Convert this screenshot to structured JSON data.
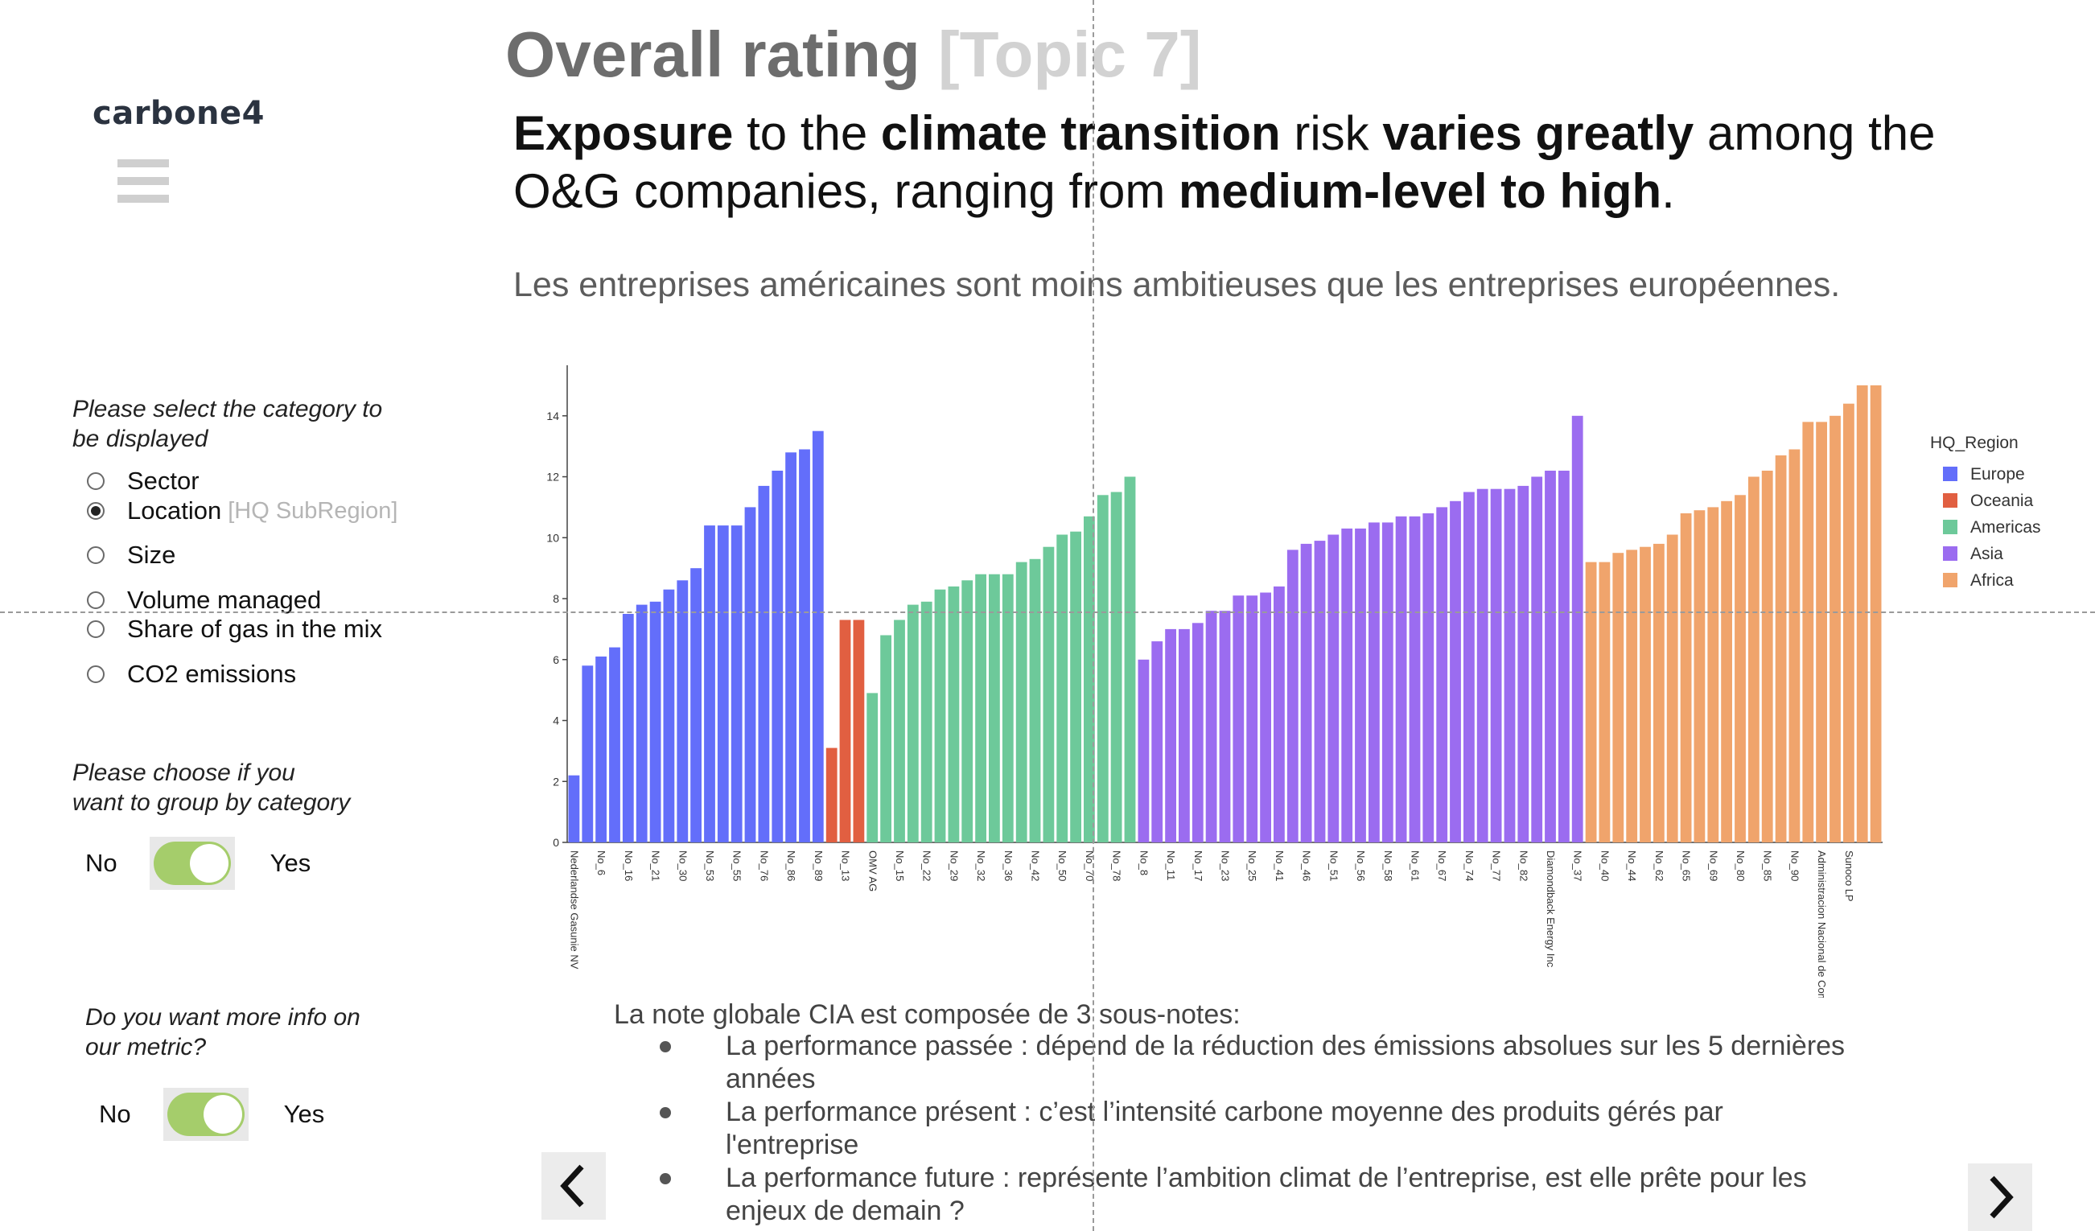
{
  "brand": {
    "logo_text": "carbone4"
  },
  "header": {
    "title": "Overall rating",
    "topic_tag": "[Topic 7]",
    "headline_parts": [
      {
        "text": "Exposure",
        "bold": true
      },
      {
        "text": " to the ",
        "bold": false
      },
      {
        "text": "climate transition",
        "bold": true
      },
      {
        "text": " risk ",
        "bold": false
      },
      {
        "text": "varies greatly",
        "bold": true
      },
      {
        "text": " among the O&G companies, ranging from ",
        "bold": false
      },
      {
        "text": "medium-level to high",
        "bold": true
      },
      {
        "text": ".",
        "bold": false
      }
    ],
    "subtitle": "Les entreprises américaines sont moins ambitieuses que les entreprises européennes."
  },
  "sidebar": {
    "category_prompt_line1": "Please select the category to",
    "category_prompt_line2": "be displayed",
    "options": [
      {
        "label": "Sector",
        "hint": "",
        "checked": false
      },
      {
        "label": "Location",
        "hint": "[HQ SubRegion]",
        "checked": true
      },
      {
        "label": "Size",
        "hint": "",
        "checked": false
      },
      {
        "label": "Volume managed",
        "hint": "",
        "checked": false
      },
      {
        "label": "Share of gas in the mix",
        "hint": "",
        "checked": false
      },
      {
        "label": "CO2 emissions",
        "hint": "",
        "checked": false
      }
    ],
    "group_prompt_line1": "Please choose if you",
    "group_prompt_line2": "want to group by category",
    "group_toggle": {
      "no": "No",
      "yes": "Yes",
      "on": true
    },
    "info_prompt_line1": "Do you want more info on",
    "info_prompt_line2": "our metric?",
    "info_toggle": {
      "no": "No",
      "yes": "Yes",
      "on": true
    }
  },
  "chart_data": {
    "type": "bar",
    "legend_title": "HQ_Region",
    "legend_position": "right",
    "ylim": [
      0,
      15.5
    ],
    "yticks": [
      0,
      2,
      4,
      6,
      8,
      10,
      12,
      14
    ],
    "grid": false,
    "colors": {
      "Europe": "#636efa",
      "Oceania": "#e15f41",
      "Americas": "#6dc99a",
      "Asia": "#9b6cf0",
      "Africa": "#f0a46c"
    },
    "series": [
      {
        "name": "Europe",
        "values": [
          2.2,
          5.8,
          6.1,
          6.4,
          7.5,
          7.8,
          7.9,
          8.3,
          8.6,
          9.0,
          10.4,
          10.4,
          10.4,
          11.0,
          11.7,
          12.2,
          12.8,
          12.9,
          13.5
        ]
      },
      {
        "name": "Oceania",
        "values": [
          3.1,
          7.3,
          7.3
        ]
      },
      {
        "name": "Americas",
        "values": [
          4.9,
          6.8,
          7.3,
          7.8,
          7.9,
          8.3,
          8.4,
          8.6,
          8.8,
          8.8,
          8.8,
          9.2,
          9.3,
          9.7,
          10.1,
          10.2,
          10.7,
          11.4,
          11.5,
          12.0
        ]
      },
      {
        "name": "Asia",
        "values": [
          6.0,
          6.6,
          7.0,
          7.0,
          7.2,
          7.6,
          7.6,
          8.1,
          8.1,
          8.2,
          8.4,
          9.6,
          9.8,
          9.9,
          10.1,
          10.3,
          10.3,
          10.5,
          10.5,
          10.7,
          10.7,
          10.8,
          11.0,
          11.2,
          11.5,
          11.6,
          11.6,
          11.6,
          11.7,
          12.0,
          12.2,
          12.2,
          14.0
        ]
      },
      {
        "name": "Africa",
        "values": [
          9.2,
          9.2,
          9.5,
          9.6,
          9.7,
          9.8,
          10.1,
          10.8,
          10.9,
          11.0,
          11.2,
          11.4,
          12.0,
          12.2,
          12.7,
          12.9,
          13.8,
          13.8,
          14.0,
          14.4,
          15.0,
          15.0
        ]
      }
    ],
    "x_tick_labels": [
      {
        "index": 0,
        "label": "Nederlandse Gasunie NV"
      },
      {
        "index": 2,
        "label": "No_6"
      },
      {
        "index": 4,
        "label": "No_16"
      },
      {
        "index": 6,
        "label": "No_21"
      },
      {
        "index": 8,
        "label": "No_30"
      },
      {
        "index": 10,
        "label": "No_53"
      },
      {
        "index": 12,
        "label": "No_55"
      },
      {
        "index": 14,
        "label": "No_76"
      },
      {
        "index": 16,
        "label": "No_86"
      },
      {
        "index": 18,
        "label": "No_89"
      },
      {
        "index": 20,
        "label": "No_13"
      },
      {
        "index": 22,
        "label": "OMV AG"
      },
      {
        "index": 24,
        "label": "No_15"
      },
      {
        "index": 26,
        "label": "No_22"
      },
      {
        "index": 28,
        "label": "No_29"
      },
      {
        "index": 30,
        "label": "No_32"
      },
      {
        "index": 32,
        "label": "No_36"
      },
      {
        "index": 34,
        "label": "No_42"
      },
      {
        "index": 36,
        "label": "No_50"
      },
      {
        "index": 38,
        "label": "No_70"
      },
      {
        "index": 40,
        "label": "No_78"
      },
      {
        "index": 42,
        "label": "No_8"
      },
      {
        "index": 44,
        "label": "No_11"
      },
      {
        "index": 46,
        "label": "No_17"
      },
      {
        "index": 48,
        "label": "No_23"
      },
      {
        "index": 50,
        "label": "No_25"
      },
      {
        "index": 52,
        "label": "No_41"
      },
      {
        "index": 54,
        "label": "No_46"
      },
      {
        "index": 56,
        "label": "No_51"
      },
      {
        "index": 58,
        "label": "No_56"
      },
      {
        "index": 60,
        "label": "No_58"
      },
      {
        "index": 62,
        "label": "No_61"
      },
      {
        "index": 64,
        "label": "No_67"
      },
      {
        "index": 66,
        "label": "No_74"
      },
      {
        "index": 68,
        "label": "No_77"
      },
      {
        "index": 70,
        "label": "No_82"
      },
      {
        "index": 72,
        "label": "Diamondback Energy Inc"
      },
      {
        "index": 74,
        "label": "No_37"
      },
      {
        "index": 76,
        "label": "No_40"
      },
      {
        "index": 78,
        "label": "No_44"
      },
      {
        "index": 80,
        "label": "No_62"
      },
      {
        "index": 82,
        "label": "No_65"
      },
      {
        "index": 84,
        "label": "No_69"
      },
      {
        "index": 86,
        "label": "No_80"
      },
      {
        "index": 88,
        "label": "No_85"
      },
      {
        "index": 90,
        "label": "No_90"
      },
      {
        "index": 92,
        "label": "Administracion Nacional de Combustibles Alcohol y Portland"
      },
      {
        "index": 94,
        "label": "Sunoco LP"
      }
    ]
  },
  "metric_info": {
    "intro": "La note globale CIA est composée de 3 sous-notes:",
    "bullets": [
      {
        "line1": "La performance passée : dépend de la réduction des émissions absolues sur les 5 dernières",
        "line2": "années"
      },
      {
        "line1": "La performance présent : c’est l’intensité carbone moyenne des produits gérés par",
        "line2": "l'entreprise"
      },
      {
        "line1": "La performance future : représente l’ambition climat de l’entreprise, est elle prête pour les",
        "line2": "enjeux de demain ?"
      }
    ]
  },
  "navigation": {
    "prev_icon": "chevron-left-icon",
    "next_icon": "chevron-right-icon"
  }
}
